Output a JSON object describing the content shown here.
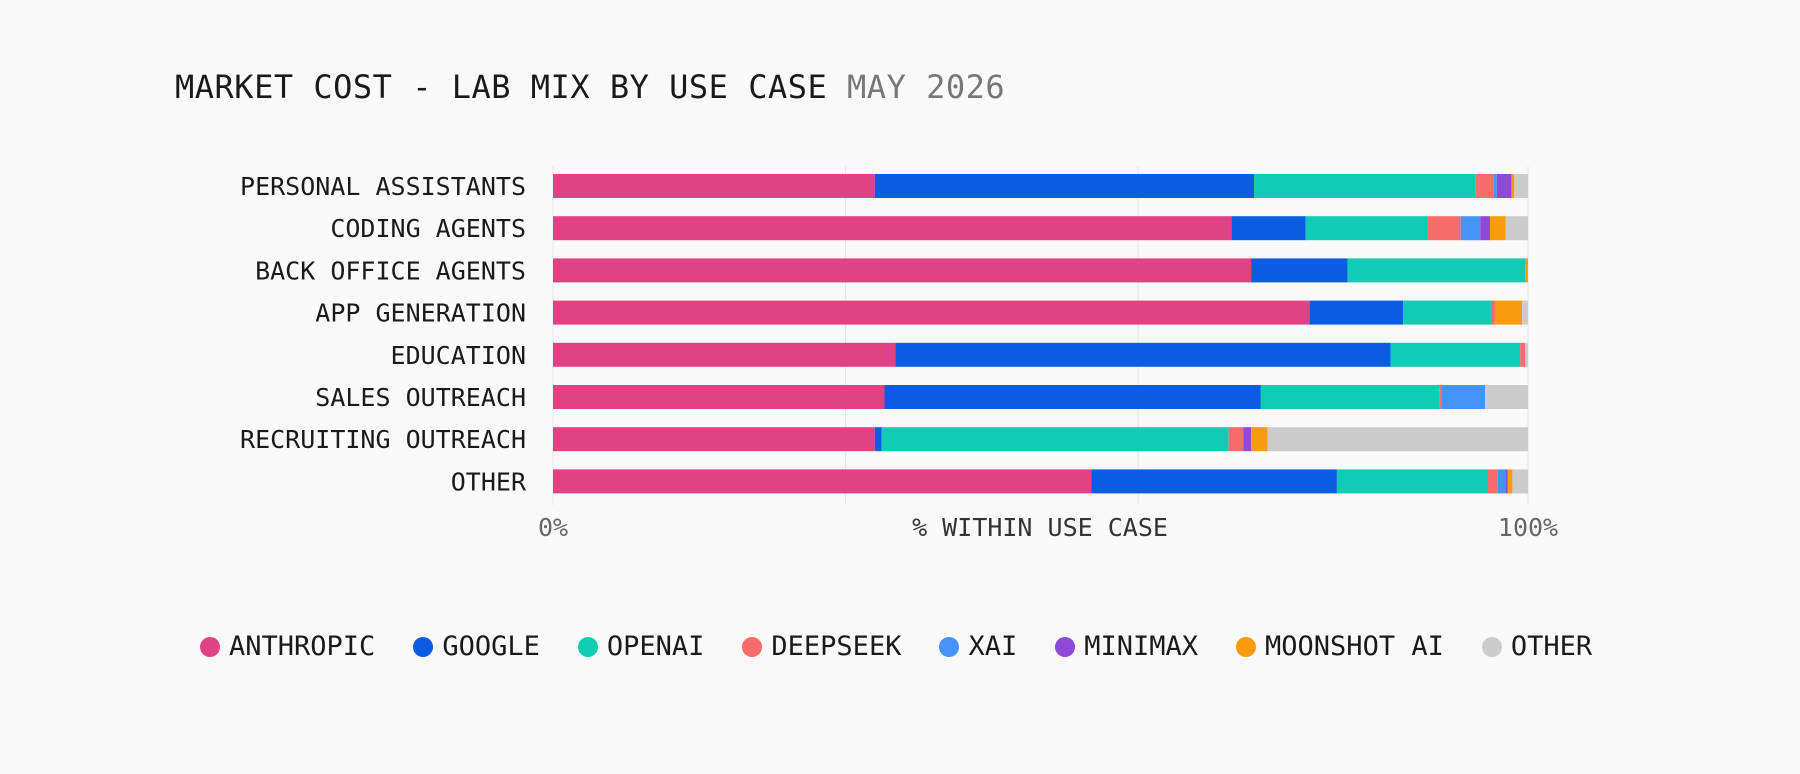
{
  "title": "MARKET COST - LAB MIX BY USE CASE",
  "subtitle": "MAY 2026",
  "chart_data": {
    "type": "bar",
    "orientation": "horizontal",
    "stacked": true,
    "normalized": true,
    "title": "MARKET COST - LAB MIX BY USE CASE",
    "subtitle": "MAY 2026",
    "xlabel": "% WITHIN USE CASE",
    "ylabel": "",
    "xlim": [
      0,
      100
    ],
    "x_tick_labels": [
      "0%",
      "100%"
    ],
    "grid": true,
    "legend_position": "bottom",
    "categories": [
      "PERSONAL ASSISTANTS",
      "CODING AGENTS",
      "BACK OFFICE AGENTS",
      "APP GENERATION",
      "EDUCATION",
      "SALES OUTREACH",
      "RECRUITING OUTREACH",
      "OTHER"
    ],
    "series": [
      {
        "name": "ANTHROPIC",
        "color": "#e04283",
        "values": [
          33.0,
          69.6,
          71.6,
          77.6,
          35.1,
          34.0,
          33.0,
          55.2
        ]
      },
      {
        "name": "GOOGLE",
        "color": "#0b5ce0",
        "values": [
          38.9,
          7.6,
          9.9,
          9.6,
          50.8,
          38.6,
          0.7,
          25.2
        ]
      },
      {
        "name": "OPENAI",
        "color": "#12cbb4",
        "values": [
          22.7,
          12.5,
          18.2,
          9.0,
          13.3,
          18.3,
          35.6,
          15.5
        ]
      },
      {
        "name": "DEEPSEEK",
        "color": "#f86b6b",
        "values": [
          1.9,
          3.4,
          0.0,
          0.4,
          0.5,
          0.2,
          1.5,
          1.0
        ]
      },
      {
        "name": "XAI",
        "color": "#4593f5",
        "values": [
          0.3,
          2.0,
          0.0,
          0.0,
          0.0,
          4.5,
          0.0,
          0.8
        ]
      },
      {
        "name": "MINIMAX",
        "color": "#8e49d6",
        "values": [
          1.5,
          1.0,
          0.0,
          0.0,
          0.0,
          0.0,
          0.8,
          0.2
        ]
      },
      {
        "name": "MOONSHOT AI",
        "color": "#f89b0e",
        "values": [
          0.3,
          1.6,
          0.3,
          2.8,
          0.0,
          0.0,
          1.7,
          0.5
        ]
      },
      {
        "name": "OTHER",
        "color": "#cbcbcb",
        "values": [
          1.4,
          2.3,
          0.0,
          0.6,
          0.3,
          4.4,
          26.7,
          1.6
        ]
      }
    ]
  }
}
